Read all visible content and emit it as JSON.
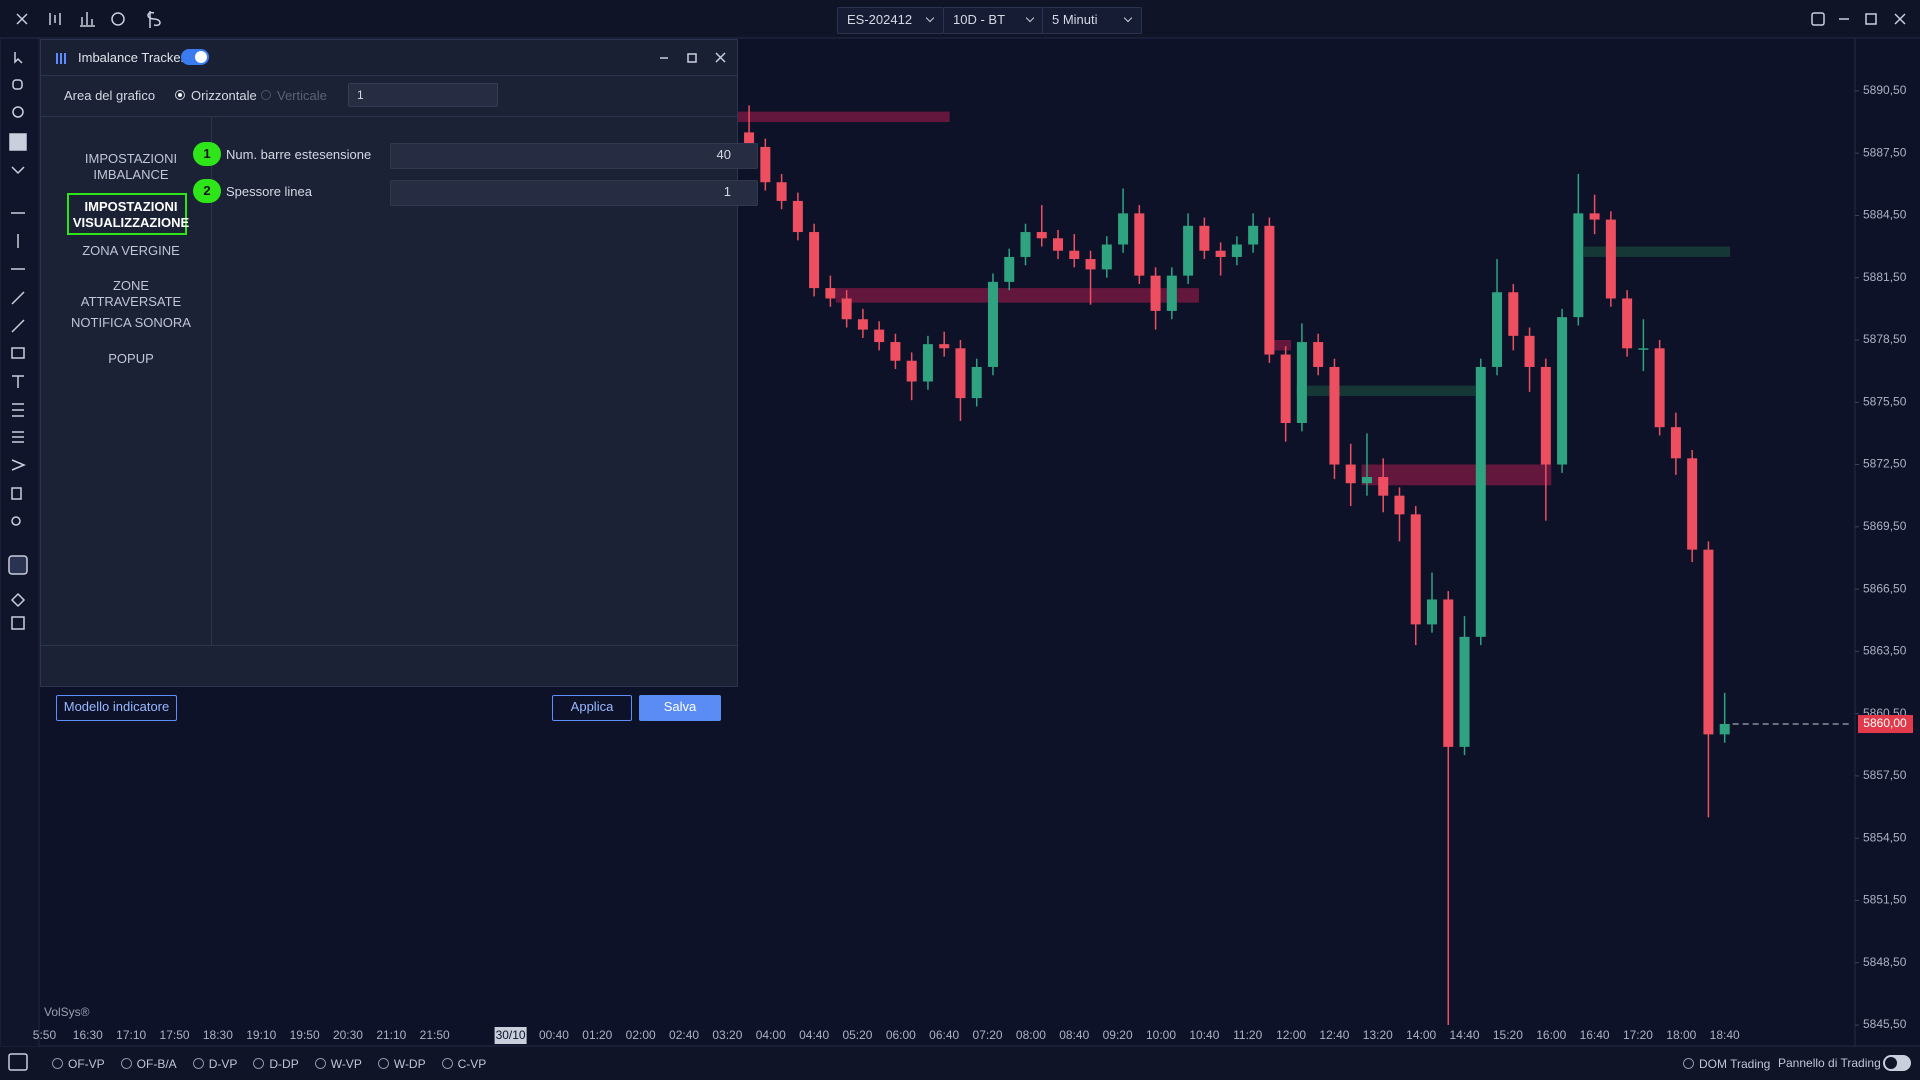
{
  "toolbar": {
    "instrument": "ES-202412",
    "range": "10D - BT",
    "timeframe": "5 Minuti"
  },
  "dialog": {
    "title": "Imbalance Tracker",
    "chart_area_label": "Area del grafico",
    "orientation_options": [
      "Orizzontale",
      "Verticale"
    ],
    "chart_area_value": "1",
    "menu": [
      "IMPOSTAZIONI IMBALANCE",
      "IMPOSTAZIONI VISUALIZZAZIONE",
      "ZONA VERGINE",
      "ZONE ATTRAVERSATE",
      "NOTIFICA SONORA",
      "POPUP"
    ],
    "settings": [
      {
        "badge": 1,
        "label": "Num. barre estesensione",
        "value": 40
      },
      {
        "badge": 2,
        "label": "Spessore linea",
        "value": 1
      }
    ],
    "buttons": {
      "template": "Modello indicatore",
      "apply": "Applica",
      "save": "Salva"
    }
  },
  "chart": {
    "type": "candlestick",
    "up_color": "#2fa37f",
    "down_color": "#ee4f60",
    "ylim": [
      5845.5,
      5893
    ],
    "yticks": [
      {
        "value": 5890.5,
        "label": "5890,50"
      },
      {
        "value": 5887.5,
        "label": "5887,50"
      },
      {
        "value": 5884.5,
        "label": "5884,50"
      },
      {
        "value": 5881.5,
        "label": "5881,50"
      },
      {
        "value": 5878.5,
        "label": "5878,50"
      },
      {
        "value": 5875.5,
        "label": "5875,50"
      },
      {
        "value": 5872.5,
        "label": "5872,50"
      },
      {
        "value": 5869.5,
        "label": "5869,50"
      },
      {
        "value": 5866.5,
        "label": "5866,50"
      },
      {
        "value": 5863.5,
        "label": "5863,50"
      },
      {
        "value": 5860.5,
        "label": "5860,50"
      },
      {
        "value": 5857.5,
        "label": "5857,50"
      },
      {
        "value": 5854.5,
        "label": "5854,50"
      },
      {
        "value": 5851.5,
        "label": "5851,50"
      },
      {
        "value": 5848.5,
        "label": "5848,50"
      },
      {
        "value": 5845.5,
        "label": "5845,50"
      }
    ],
    "xticks": [
      "5:50",
      "16:30",
      "17:10",
      "17:50",
      "18:30",
      "19:10",
      "19:50",
      "20:30",
      "21:10",
      "21:50",
      "30/10",
      "00:40",
      "01:20",
      "02:00",
      "02:40",
      "03:20",
      "04:00",
      "04:40",
      "05:20",
      "06:00",
      "06:40",
      "07:20",
      "08:00",
      "08:40",
      "09:20",
      "10:00",
      "10:40",
      "11:20",
      "12:00",
      "12:40",
      "13:20",
      "14:00",
      "14:40",
      "15:20",
      "16:00",
      "16:40",
      "17:20",
      "18:00",
      "18:40"
    ],
    "x": [
      "03:40",
      "03:55",
      "04:10",
      "04:25",
      "04:40",
      "04:55",
      "05:10",
      "05:25",
      "05:40",
      "05:55",
      "06:10",
      "06:25",
      "06:40",
      "06:55",
      "07:10",
      "07:25",
      "07:40",
      "07:55",
      "08:10",
      "08:25",
      "08:40",
      "08:55",
      "09:10",
      "09:25",
      "09:40",
      "09:55",
      "10:10",
      "10:25",
      "10:40",
      "10:55",
      "11:10",
      "11:25",
      "11:40",
      "11:55",
      "12:10",
      "12:25",
      "12:40",
      "12:55",
      "13:10",
      "13:25",
      "13:40",
      "13:55",
      "14:10",
      "14:25",
      "14:40",
      "14:55",
      "15:10",
      "15:25",
      "15:40",
      "15:55",
      "16:10",
      "16:25",
      "16:40",
      "16:55",
      "17:10",
      "17:25",
      "17:40",
      "17:55",
      "18:10",
      "18:25",
      "18:40"
    ],
    "candles": [
      [
        5888.5,
        5889.8,
        5887.2,
        5887.8
      ],
      [
        5887.8,
        5888.2,
        5885.7,
        5886.1
      ],
      [
        5886.1,
        5886.5,
        5884.8,
        5885.2
      ],
      [
        5885.2,
        5885.6,
        5883.3,
        5883.7
      ],
      [
        5883.7,
        5884.1,
        5880.6,
        5881.0
      ],
      [
        5881.0,
        5881.6,
        5880.1,
        5880.5
      ],
      [
        5880.5,
        5880.9,
        5879.1,
        5879.5
      ],
      [
        5879.5,
        5880.0,
        5878.6,
        5879.0
      ],
      [
        5879.0,
        5879.4,
        5878.0,
        5878.4
      ],
      [
        5878.4,
        5878.8,
        5877.1,
        5877.5
      ],
      [
        5877.5,
        5877.9,
        5875.6,
        5876.5
      ],
      [
        5876.5,
        5878.7,
        5876.1,
        5878.3
      ],
      [
        5878.3,
        5878.9,
        5877.7,
        5878.1
      ],
      [
        5878.1,
        5878.5,
        5874.6,
        5875.7
      ],
      [
        5875.7,
        5877.6,
        5875.3,
        5877.2
      ],
      [
        5877.2,
        5881.7,
        5876.8,
        5881.3
      ],
      [
        5881.3,
        5882.9,
        5880.9,
        5882.5
      ],
      [
        5882.5,
        5884.1,
        5882.1,
        5883.7
      ],
      [
        5883.7,
        5885.0,
        5883.0,
        5883.4
      ],
      [
        5883.4,
        5883.8,
        5882.4,
        5882.8
      ],
      [
        5882.8,
        5883.6,
        5882.0,
        5882.4
      ],
      [
        5882.4,
        5882.8,
        5880.2,
        5881.9
      ],
      [
        5881.9,
        5883.5,
        5881.5,
        5883.1
      ],
      [
        5883.1,
        5885.8,
        5882.7,
        5884.6
      ],
      [
        5884.6,
        5885.0,
        5881.2,
        5881.6
      ],
      [
        5881.6,
        5882.0,
        5879.0,
        5879.9
      ],
      [
        5879.9,
        5882.0,
        5879.5,
        5881.6
      ],
      [
        5881.6,
        5884.6,
        5881.2,
        5884.0
      ],
      [
        5884.0,
        5884.4,
        5882.4,
        5882.8
      ],
      [
        5882.8,
        5883.2,
        5881.6,
        5882.5
      ],
      [
        5882.5,
        5883.5,
        5882.1,
        5883.1
      ],
      [
        5883.1,
        5884.6,
        5882.7,
        5884.0
      ],
      [
        5884.0,
        5884.4,
        5877.4,
        5877.8
      ],
      [
        5877.8,
        5878.2,
        5873.6,
        5874.5
      ],
      [
        5874.5,
        5879.3,
        5874.1,
        5878.4
      ],
      [
        5878.4,
        5878.8,
        5876.8,
        5877.2
      ],
      [
        5877.2,
        5877.6,
        5871.8,
        5872.5
      ],
      [
        5872.5,
        5873.5,
        5870.5,
        5871.6
      ],
      [
        5871.6,
        5874.0,
        5871.0,
        5871.9
      ],
      [
        5871.9,
        5872.8,
        5870.2,
        5871.0
      ],
      [
        5871.0,
        5871.4,
        5868.8,
        5870.1
      ],
      [
        5870.1,
        5870.5,
        5863.8,
        5864.8
      ],
      [
        5864.8,
        5867.3,
        5864.4,
        5866.0
      ],
      [
        5866.0,
        5866.4,
        5845.5,
        5858.9
      ],
      [
        5858.9,
        5865.2,
        5858.5,
        5864.2
      ],
      [
        5864.2,
        5877.6,
        5863.8,
        5877.2
      ],
      [
        5877.2,
        5882.4,
        5876.8,
        5880.8
      ],
      [
        5880.8,
        5881.2,
        5878.0,
        5878.7
      ],
      [
        5878.7,
        5879.1,
        5876.0,
        5877.2
      ],
      [
        5877.2,
        5877.6,
        5869.8,
        5872.5
      ],
      [
        5872.5,
        5880.0,
        5872.1,
        5879.6
      ],
      [
        5879.6,
        5886.5,
        5879.2,
        5884.6
      ],
      [
        5884.6,
        5885.5,
        5883.6,
        5884.3
      ],
      [
        5884.3,
        5884.7,
        5880.1,
        5880.5
      ],
      [
        5880.5,
        5880.9,
        5877.7,
        5878.1
      ],
      [
        5878.1,
        5879.5,
        5877.0,
        5878.1
      ],
      [
        5878.1,
        5878.5,
        5873.9,
        5874.3
      ],
      [
        5874.3,
        5875.0,
        5872.0,
        5872.8
      ],
      [
        5872.8,
        5873.2,
        5867.8,
        5868.4
      ],
      [
        5868.4,
        5868.8,
        5855.5,
        5859.5
      ],
      [
        5859.5,
        5861.5,
        5859.1,
        5860.0
      ]
    ],
    "zones": [
      {
        "start": "03:00",
        "end": "06:45",
        "top": 5889.5,
        "bottom": 5889.0,
        "color": "#74193f"
      },
      {
        "start": "05:00",
        "end": "10:35",
        "top": 5881.0,
        "bottom": 5880.3,
        "color": "#74193f"
      },
      {
        "start": "11:40",
        "end": "12:00",
        "top": 5878.5,
        "bottom": 5878.0,
        "color": "#74193f"
      },
      {
        "start": "13:05",
        "end": "16:00",
        "top": 5872.5,
        "bottom": 5871.5,
        "color": "#74193f"
      },
      {
        "start": "12:05",
        "end": "14:50",
        "top": 5876.3,
        "bottom": 5875.8,
        "color": "#173f3a"
      },
      {
        "start": "16:30",
        "end": "18:45",
        "top": 5883.0,
        "bottom": 5882.5,
        "color": "#173f3a"
      }
    ],
    "last_price": {
      "value": 5860,
      "label": "5860,00"
    }
  },
  "bottom_bar": {
    "studies": [
      "OF-VP",
      "OF-B/A",
      "D-VP",
      "D-DP",
      "W-VP",
      "W-DP",
      "C-VP"
    ],
    "dom": "DOM Trading",
    "panel": "Pannello di Trading"
  },
  "watermark": "VolSys®"
}
